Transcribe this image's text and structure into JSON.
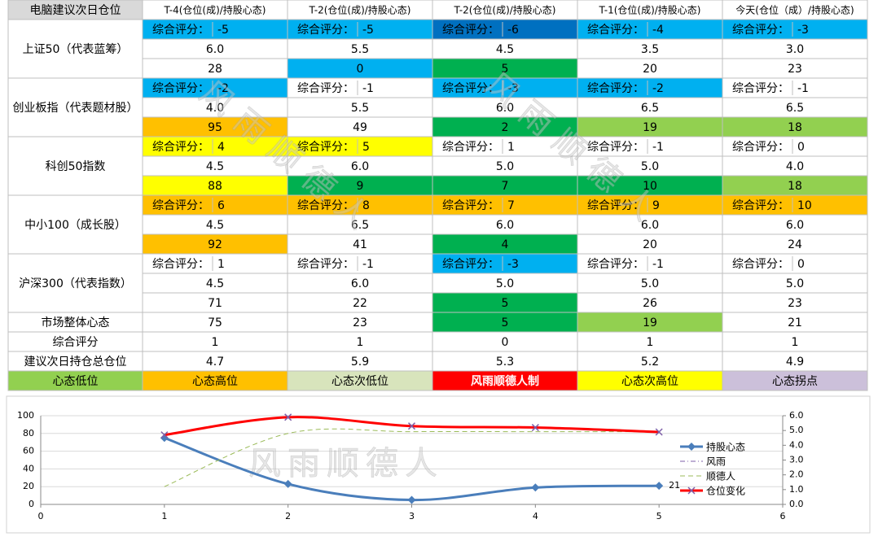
{
  "table": {
    "header": [
      "电脑建议次日仓位",
      "T-4(仓位(成)/持股心态)",
      "T-2(仓位(成)/持股心态)",
      "T-2(仓位(成)/持股心态)",
      "T-1(仓位(成)/持股心态)",
      "今天(仓位（成）/持股心态)"
    ],
    "score_label": "综合评分：",
    "sections": [
      {
        "name": "上证50（代表蓝筹）",
        "scores": [
          -5,
          -5,
          -6,
          -4,
          -3
        ],
        "score_colors": [
          "#00b0f0",
          "#00b0f0",
          "#0070c0",
          "#00b0f0",
          "#00b0f0"
        ],
        "positions": [
          "6.0",
          "5.5",
          "4.5",
          "3.5",
          "3.0"
        ],
        "moods": [
          28,
          0,
          5,
          20,
          23
        ],
        "mood_colors": [
          null,
          "#00b0f0",
          "#00b050",
          null,
          null
        ]
      },
      {
        "name": "创业板指（代表题材股）",
        "scores": [
          -2,
          -1,
          -3,
          -2,
          -1
        ],
        "score_colors": [
          "#00b0f0",
          null,
          "#00b0f0",
          "#00b0f0",
          null
        ],
        "positions": [
          "4.0",
          "5.5",
          "6.0",
          "6.5",
          "6.5"
        ],
        "moods": [
          95,
          49,
          2,
          19,
          18
        ],
        "mood_colors": [
          "#ffc000",
          null,
          "#00b050",
          "#92d050",
          "#92d050"
        ]
      },
      {
        "name": "科创50指数",
        "scores": [
          4,
          5,
          1,
          -1,
          0
        ],
        "score_colors": [
          "#ffff00",
          "#ffff00",
          null,
          null,
          null
        ],
        "positions": [
          "4.5",
          "6.0",
          "5.0",
          "5.0",
          "4.0"
        ],
        "moods": [
          88,
          9,
          7,
          10,
          18
        ],
        "mood_colors": [
          "#ffff00",
          "#00b050",
          "#00b050",
          "#00b050",
          "#92d050"
        ]
      },
      {
        "name": "中小100（成长股）",
        "scores": [
          6,
          8,
          7,
          9,
          10
        ],
        "score_colors": [
          "#ffc000",
          "#ffc000",
          "#ffc000",
          "#ffc000",
          "#ffc000"
        ],
        "positions": [
          "4.5",
          "6.5",
          "6.0",
          "6.0",
          "6.0"
        ],
        "moods": [
          92,
          41,
          4,
          20,
          24
        ],
        "mood_colors": [
          "#ffc000",
          null,
          "#00b050",
          null,
          null
        ]
      },
      {
        "name": "沪深300（代表指数）",
        "scores": [
          1,
          -1,
          -3,
          -1,
          0
        ],
        "score_colors": [
          null,
          null,
          "#00b0f0",
          null,
          null
        ],
        "positions": [
          "4.5",
          "6.0",
          "5.0",
          "5.0",
          "5.0"
        ],
        "moods": [
          71,
          22,
          5,
          26,
          23
        ],
        "mood_colors": [
          null,
          null,
          "#00b050",
          null,
          null
        ]
      }
    ],
    "summary": [
      {
        "name": "市场整体心态",
        "values": [
          75,
          23,
          5,
          19,
          21
        ],
        "colors": [
          null,
          null,
          "#00b050",
          "#92d050",
          null
        ]
      },
      {
        "name": "综合评分",
        "values": [
          1,
          1,
          0,
          1,
          1
        ],
        "colors": [
          null,
          null,
          null,
          null,
          null
        ]
      },
      {
        "name": "建议次日持仓总仓位",
        "values": [
          4.7,
          5.9,
          5.3,
          5.2,
          4.9
        ],
        "colors": [
          null,
          null,
          null,
          null,
          null
        ]
      }
    ],
    "legend": [
      {
        "label": "心态低位",
        "color": "#92d050",
        "text_color": "#000000"
      },
      {
        "label": "心态高位",
        "color": "#ffc000",
        "text_color": "#000000"
      },
      {
        "label": "心态次低位",
        "color": "#d8e4bc",
        "text_color": "#000000"
      },
      {
        "label": "风雨顺德人制",
        "color": "#ff0000",
        "text_color": "#ffffff"
      },
      {
        "label": "心态次高位",
        "color": "#ffff00",
        "text_color": "#000000"
      },
      {
        "label": "心态拐点",
        "color": "#ccc0da",
        "text_color": "#000000"
      }
    ]
  },
  "watermark": "风雨顺德人",
  "chart_data": {
    "type": "line",
    "x": [
      1,
      2,
      3,
      4,
      5
    ],
    "xlim": [
      0,
      6
    ],
    "xticks": [
      0,
      1,
      2,
      3,
      4,
      5,
      6
    ],
    "ylim": [
      0,
      100
    ],
    "yticks": [
      0,
      20,
      40,
      60,
      80,
      100
    ],
    "y2lim": [
      0,
      6
    ],
    "y2ticks": [
      {
        "value": 0,
        "label": "0.0"
      },
      {
        "value": 1,
        "label": "1.0"
      },
      {
        "value": 2,
        "label": "2.0"
      },
      {
        "value": 3,
        "label": "3.0"
      },
      {
        "value": 4,
        "label": "4.0"
      },
      {
        "value": 5,
        "label": "5.0"
      },
      {
        "value": 6,
        "label": "6.0"
      }
    ],
    "grid": true,
    "series": [
      {
        "name": "持股心态",
        "color": "#4a7ebb",
        "values": [
          75,
          23,
          5,
          19,
          21
        ],
        "marker": "diamond",
        "dash": "solid",
        "width": 3,
        "label_last": true
      },
      {
        "name": "风雨",
        "color": "#7e5fa8",
        "values": [
          null,
          null,
          null,
          null,
          null
        ],
        "marker": "none",
        "dash": "dashdot",
        "width": 1
      },
      {
        "name": "顺德人",
        "color": "#9bbb59",
        "values": [
          20,
          80,
          82,
          82,
          82
        ],
        "marker": "none",
        "dash": "dash",
        "width": 1
      },
      {
        "name": "仓位变化",
        "color": "#ff0000",
        "values": [
          4.7,
          5.9,
          5.3,
          5.2,
          4.9
        ],
        "marker": "x",
        "dash": "solid",
        "width": 3,
        "axis": "y2"
      }
    ]
  }
}
